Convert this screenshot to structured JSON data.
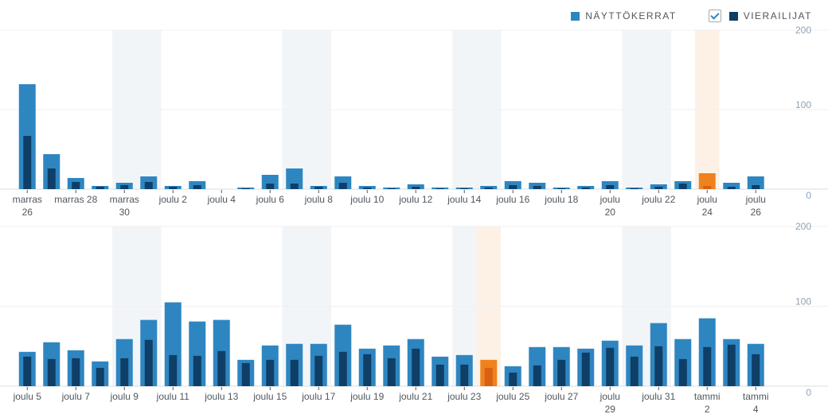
{
  "legend": {
    "views_label": "NÄYTTÖKERRAT",
    "visitors_label": "VIERAILIJAT",
    "visitors_checked": true
  },
  "colors": {
    "views": "#2e86c1",
    "visitors": "#0f3e66",
    "highlight": "#f0821e",
    "highlight_dark": "#d95f12",
    "weekend": "#f2f5f8",
    "highlight_bg": "#fdf1e6"
  },
  "chart_data": [
    {
      "type": "bar",
      "ylim": [
        0,
        200
      ],
      "yticks": [
        0,
        100,
        200
      ],
      "categories": [
        "marras 26",
        "marras 27",
        "marras 28",
        "marras 29",
        "marras 30",
        "joulu 1",
        "joulu 2",
        "joulu 3",
        "joulu 4",
        "joulu 5",
        "joulu 6",
        "joulu 7",
        "joulu 8",
        "joulu 9",
        "joulu 10",
        "joulu 11",
        "joulu 12",
        "joulu 13",
        "joulu 14",
        "joulu 15",
        "joulu 16",
        "joulu 17",
        "joulu 18",
        "joulu 19",
        "joulu 20",
        "joulu 21",
        "joulu 22",
        "joulu 23",
        "joulu 24",
        "joulu 25",
        "joulu 26"
      ],
      "labels": [
        [
          "marras",
          "26"
        ],
        [
          "marras 28"
        ],
        [
          "marras",
          "30"
        ],
        [
          "joulu 2"
        ],
        [
          "joulu 4"
        ],
        [
          "joulu 6"
        ],
        [
          "joulu 8"
        ],
        [
          "joulu 10"
        ],
        [
          "joulu 12"
        ],
        [
          "joulu 14"
        ],
        [
          "joulu 16"
        ],
        [
          "joulu 18"
        ],
        [
          "joulu",
          "20"
        ],
        [
          "joulu 22"
        ],
        [
          "joulu",
          "24"
        ],
        [
          "joulu",
          "26"
        ]
      ],
      "series": [
        {
          "name": "Näyttökerrat",
          "values": [
            132,
            44,
            14,
            4,
            8,
            16,
            4,
            10,
            0,
            2,
            18,
            26,
            4,
            16,
            4,
            2,
            6,
            2,
            2,
            4,
            10,
            8,
            2,
            4,
            10,
            2,
            6,
            10,
            20,
            8,
            16
          ]
        },
        {
          "name": "Vierailijat",
          "values": [
            67,
            26,
            9,
            3,
            5,
            9,
            3,
            5,
            0,
            1,
            7,
            7,
            3,
            8,
            2,
            1,
            3,
            1,
            1,
            2,
            5,
            4,
            1,
            2,
            5,
            1,
            3,
            7,
            4,
            3,
            5
          ]
        }
      ],
      "weekend": [
        4,
        5,
        11,
        12,
        18,
        19,
        25,
        26
      ],
      "selected": 28
    },
    {
      "type": "bar",
      "ylim": [
        0,
        200
      ],
      "yticks": [
        0,
        100,
        200
      ],
      "categories": [
        "joulu 5",
        "joulu 6",
        "joulu 7",
        "joulu 8",
        "joulu 9",
        "joulu 10",
        "joulu 11",
        "joulu 12",
        "joulu 13",
        "joulu 14",
        "joulu 15",
        "joulu 16",
        "joulu 17",
        "joulu 18",
        "joulu 19",
        "joulu 20",
        "joulu 21",
        "joulu 22",
        "joulu 23",
        "joulu 24",
        "joulu 25",
        "joulu 26",
        "joulu 27",
        "joulu 28",
        "joulu 29",
        "joulu 30",
        "joulu 31",
        "tammi 1",
        "tammi 2",
        "tammi 3",
        "tammi 4"
      ],
      "labels": [
        [
          "joulu 5"
        ],
        [
          "joulu 7"
        ],
        [
          "joulu 9"
        ],
        [
          "joulu 11"
        ],
        [
          "joulu 13"
        ],
        [
          "joulu 15"
        ],
        [
          "joulu 17"
        ],
        [
          "joulu 19"
        ],
        [
          "joulu 21"
        ],
        [
          "joulu 23"
        ],
        [
          "joulu 25"
        ],
        [
          "joulu 27"
        ],
        [
          "joulu",
          "29"
        ],
        [
          "joulu 31"
        ],
        [
          "tammi",
          "2"
        ],
        [
          "tammi",
          "4"
        ]
      ],
      "series": [
        {
          "name": "Näyttökerrat",
          "values": [
            43,
            55,
            45,
            31,
            59,
            83,
            105,
            81,
            83,
            33,
            51,
            53,
            53,
            77,
            47,
            51,
            59,
            37,
            39,
            33,
            25,
            49,
            49,
            47,
            57,
            51,
            79,
            59,
            85,
            59,
            53
          ]
        },
        {
          "name": "Vierailijat",
          "values": [
            37,
            34,
            35,
            23,
            35,
            58,
            39,
            38,
            44,
            29,
            33,
            33,
            38,
            43,
            40,
            35,
            47,
            27,
            27,
            23,
            17,
            26,
            33,
            42,
            48,
            37,
            50,
            34,
            49,
            52,
            40
          ]
        }
      ],
      "weekend": [
        4,
        5,
        11,
        12,
        18,
        25,
        26
      ],
      "selected": 19
    }
  ]
}
